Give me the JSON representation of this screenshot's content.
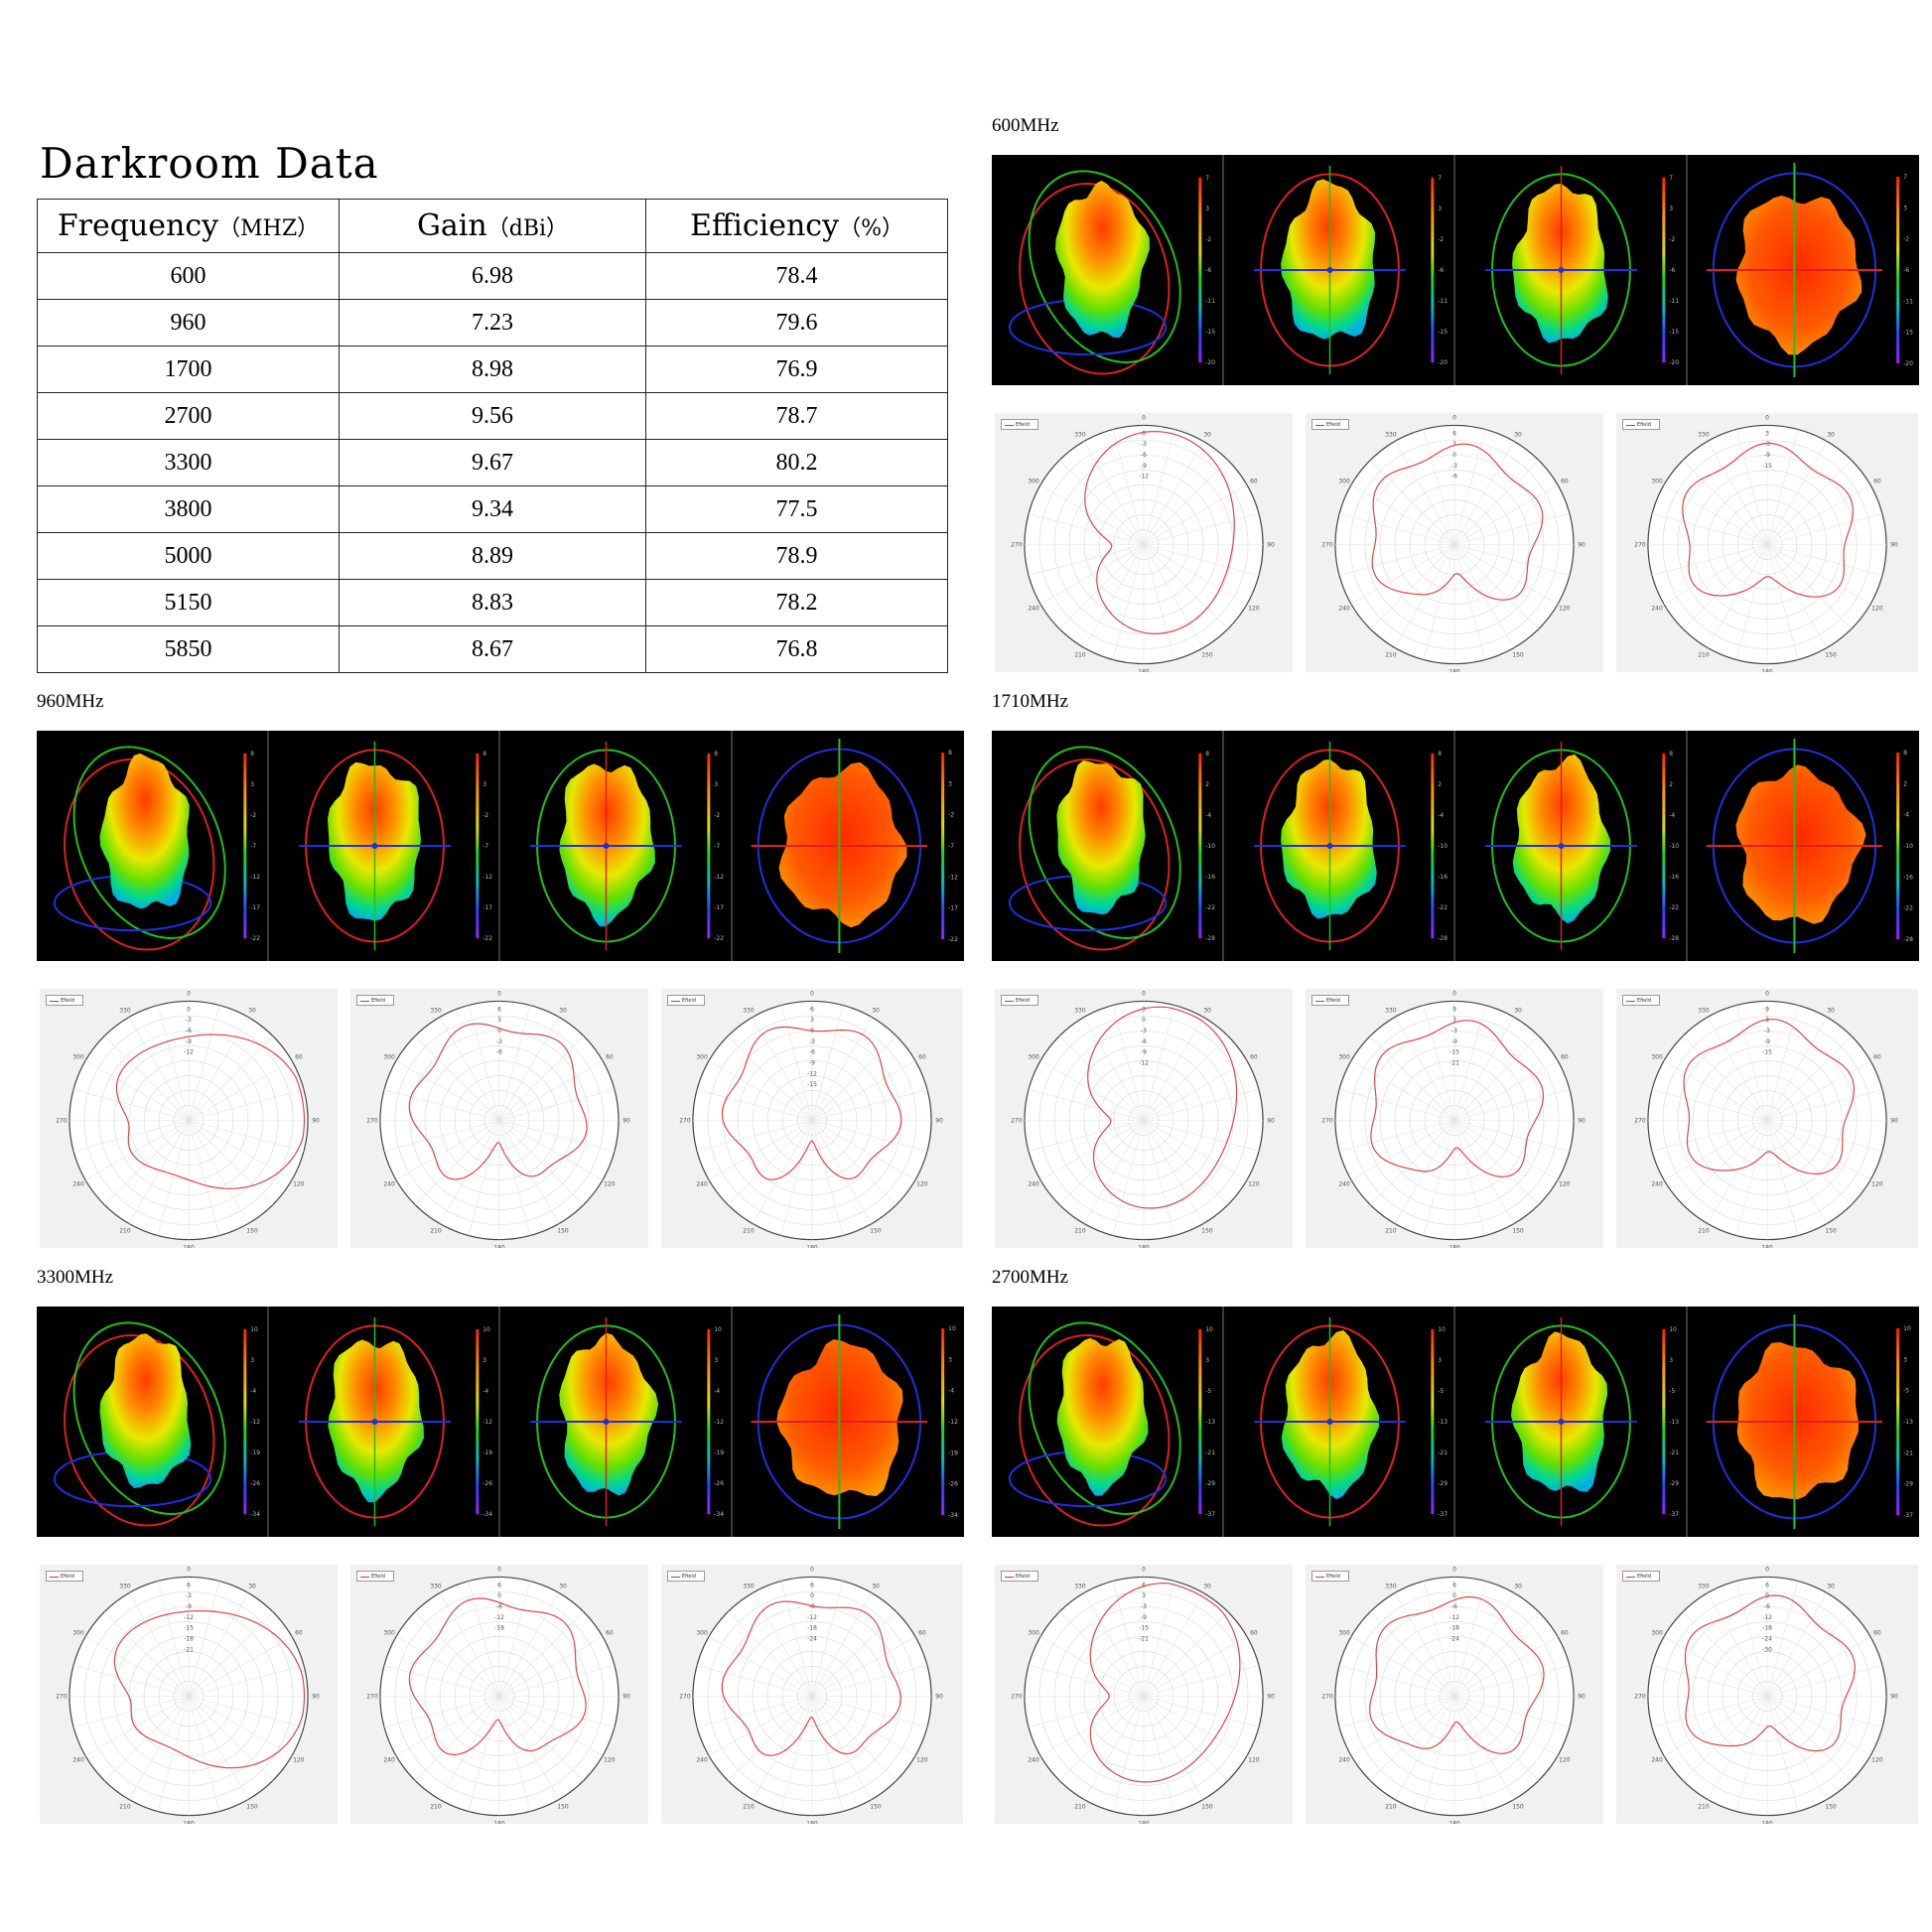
{
  "page": {
    "title": "Darkroom Data"
  },
  "table": {
    "headers": [
      {
        "main": "Frequency",
        "unit": "（MHZ）"
      },
      {
        "main": "Gain",
        "unit": "（dBi）"
      },
      {
        "main": "Efficiency",
        "unit": "（%）"
      }
    ],
    "rows": [
      [
        "600",
        "6.98",
        "78.4"
      ],
      [
        "960",
        "7.23",
        "79.6"
      ],
      [
        "1700",
        "8.98",
        "76.9"
      ],
      [
        "2700",
        "9.56",
        "78.7"
      ],
      [
        "3300",
        "9.67",
        "80.2"
      ],
      [
        "3800",
        "9.34",
        "77.5"
      ],
      [
        "5000",
        "8.89",
        "78.9"
      ],
      [
        "5150",
        "8.83",
        "78.2"
      ],
      [
        "5850",
        "8.67",
        "76.8"
      ]
    ]
  },
  "sections": [
    {
      "label": "600MHz",
      "scale": [
        "7",
        "3",
        "-2",
        "-6",
        "-11",
        "-15",
        "-20"
      ],
      "polar_rings": [
        [
          "0",
          "-3",
          "-6",
          "-9",
          "-12"
        ],
        [
          "6",
          "3",
          "0",
          "-3",
          "-6"
        ],
        [
          "3",
          "-3",
          "-9",
          "-15"
        ]
      ]
    },
    {
      "label": "960MHz",
      "scale": [
        "8",
        "3",
        "-2",
        "-7",
        "-12",
        "-17",
        "-22"
      ],
      "polar_rings": [
        [
          "0",
          "-3",
          "-6",
          "-9",
          "-12"
        ],
        [
          "6",
          "3",
          "0",
          "-3",
          "-6"
        ],
        [
          "6",
          "3",
          "0",
          "-3",
          "-6",
          "-9",
          "-12",
          "-15"
        ]
      ]
    },
    {
      "label": "1710MHz",
      "scale": [
        "8",
        "2",
        "-4",
        "-10",
        "-16",
        "-22",
        "-28"
      ],
      "polar_rings": [
        [
          "3",
          "0",
          "-3",
          "-6",
          "-9",
          "-12"
        ],
        [
          "9",
          "3",
          "-3",
          "-9",
          "-15",
          "-21"
        ],
        [
          "9",
          "3",
          "-3",
          "-9",
          "-15"
        ]
      ]
    },
    {
      "label": "3300MHz",
      "scale": [
        "10",
        "3",
        "-4",
        "-12",
        "-19",
        "-26",
        "-34"
      ],
      "polar_rings": [
        [
          "6",
          "-3",
          "-9",
          "-12",
          "-15",
          "-18",
          "-21"
        ],
        [
          "6",
          "0",
          "-6",
          "-12",
          "-18"
        ],
        [
          "6",
          "0",
          "-6",
          "-12",
          "-18",
          "-24"
        ]
      ]
    },
    {
      "label": "2700MHz",
      "scale": [
        "10",
        "3",
        "-5",
        "-13",
        "-21",
        "-29",
        "-37"
      ],
      "polar_rings": [
        [
          "6",
          "3",
          "-3",
          "-9",
          "-15",
          "-21"
        ],
        [
          "6",
          "0",
          "-6",
          "-12",
          "-18",
          "-24"
        ],
        [
          "6",
          "0",
          "-6",
          "-12",
          "-18",
          "-24",
          "-30"
        ]
      ]
    }
  ],
  "polar_angles": [
    "0",
    "30",
    "60",
    "90",
    "120",
    "150",
    "180",
    "210",
    "240",
    "270",
    "300",
    "330"
  ],
  "legend_label": "Efield",
  "chart_data": {
    "type": "table",
    "title": "Darkroom Data",
    "columns": [
      "Frequency（MHZ）",
      "Gain（dBi）",
      "Efficiency（%）"
    ],
    "x": [
      600,
      960,
      1700,
      2700,
      3300,
      3800,
      5000,
      5150,
      5850
    ],
    "series": [
      {
        "name": "Gain（dBi）",
        "values": [
          6.98,
          7.23,
          8.98,
          9.56,
          9.67,
          9.34,
          8.89,
          8.83,
          8.67
        ]
      },
      {
        "name": "Efficiency（%）",
        "values": [
          78.4,
          79.6,
          76.9,
          78.7,
          80.2,
          77.5,
          78.9,
          78.2,
          76.8
        ]
      }
    ]
  }
}
